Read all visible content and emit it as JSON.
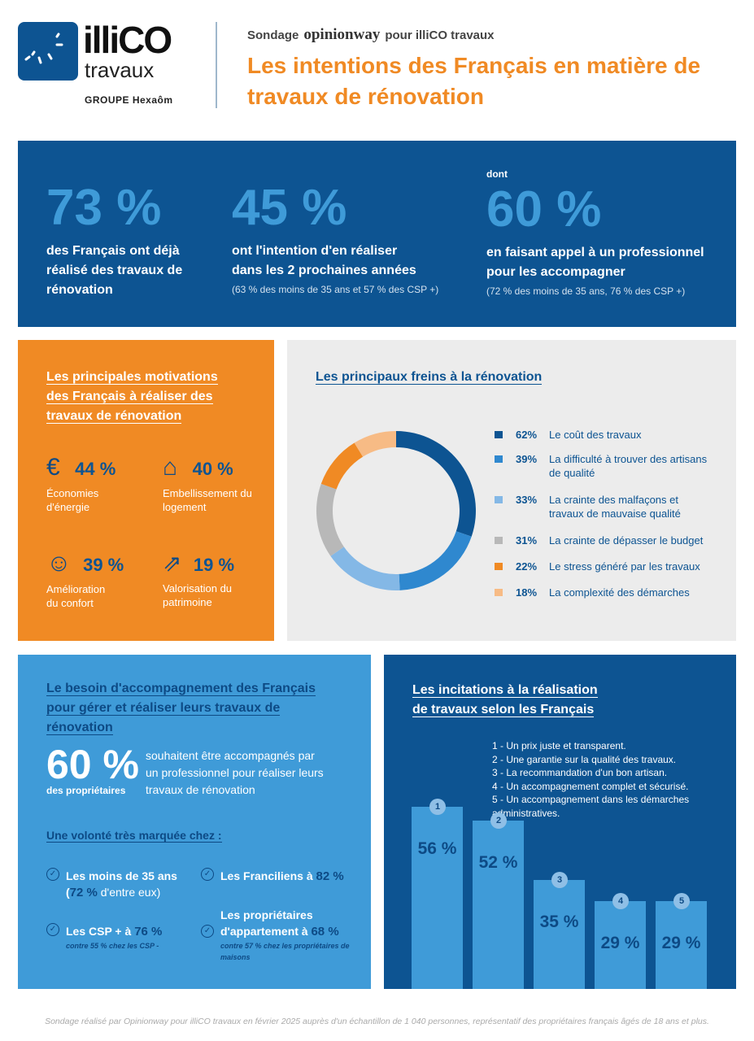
{
  "header": {
    "brand_name": "illiCO",
    "brand_sub": "travaux",
    "group": "GROUPE Hexaôm",
    "survey_prefix": "Sondage",
    "survey_partner": "opinionway",
    "survey_suffix": "pour illiCO travaux",
    "title": "Les intentions des Français en matière de travaux de rénovation"
  },
  "key_figures": [
    {
      "value": "73 %",
      "text": "des Français ont déjà réalisé des travaux de rénovation"
    },
    {
      "value": "45 %",
      "text": "ont l'intention d'en réaliser dans les 2 prochaines années",
      "note": "(63 % des moins de 35 ans et 57 % des CSP +)"
    },
    {
      "pre": "dont",
      "value": "60 %",
      "text": "en faisant appel à un professionnel pour les accompagner",
      "note": "(72 % des moins de 35 ans, 76 % des CSP +)"
    }
  ],
  "motivations": {
    "title": "Les principales motivations des Français à réaliser des travaux de rénovation",
    "items": [
      {
        "icon": "euro-hand-icon",
        "value": "44 %",
        "label": "Économies d'énergie"
      },
      {
        "icon": "house-icon",
        "value": "40 %",
        "label": "Embellissement du logement"
      },
      {
        "icon": "smiley-icon",
        "value": "39 %",
        "label": "Amélioration du confort"
      },
      {
        "icon": "arrow-up-right-icon",
        "value": "19 %",
        "label": "Valorisation du patrimoine"
      }
    ]
  },
  "freins": {
    "title": "Les principaux freins à la rénovation"
  },
  "accompagnement": {
    "title": "Le besoin d'accompagnement des Français pour gérer et réaliser leurs travaux de rénovation",
    "big": "60 %",
    "big_sub": "des propriétaires",
    "text": "souhaitent être accompagnés par un professionnel pour réaliser leurs travaux de rénovation",
    "subtitle": "Une volonté très marquée chez :",
    "items": [
      {
        "label": "Les moins de 35 ans",
        "value": "72 %",
        "extra": "d'entre eux)"
      },
      {
        "label": "Les Franciliens à",
        "value": "82 %"
      },
      {
        "label": "Les CSP +  à",
        "value": "76 %",
        "note": "contre 55 % chez les CSP -"
      },
      {
        "label": "Les propriétaires d'appartement à",
        "value": "68 %",
        "note": "contre 57 % chez les propriétaires de maisons"
      }
    ]
  },
  "incitations": {
    "title": "Les incitations à la réalisation de travaux selon les Français"
  },
  "chart_data": [
    {
      "type": "pie",
      "title": "Les principaux freins à la rénovation",
      "series": [
        {
          "name": "Le coût des travaux",
          "value": 62,
          "color": "#0d5492"
        },
        {
          "name": "La difficulté à trouver des artisans de qualité",
          "value": 39,
          "color": "#2f88cf"
        },
        {
          "name": "La crainte des malfaçons et travaux de mauvaise qualité",
          "value": 33,
          "color": "#84b8e6"
        },
        {
          "name": "La crainte de dépasser le budget",
          "value": 31,
          "color": "#b8b8b8"
        },
        {
          "name": "Le stress généré par les travaux",
          "value": 22,
          "color": "#f08a24"
        },
        {
          "name": "La complexité des démarches",
          "value": 18,
          "color": "#f7bb85"
        }
      ]
    },
    {
      "type": "bar",
      "title": "Les incitations à la réalisation de travaux selon les Français",
      "categories": [
        "1",
        "2",
        "3",
        "4",
        "5"
      ],
      "legend": [
        "1 - Un prix juste et transparent.",
        "2 - Une garantie sur la qualité des travaux.",
        "3 - La recommandation d'un bon artisan.",
        "4 - Un accompagnement complet et sécurisé.",
        "5 - Un accompagnement dans les démarches administratives."
      ],
      "values": [
        56,
        52,
        35,
        29,
        29
      ],
      "labels": [
        "56 %",
        "52 %",
        "35 %",
        "29 %",
        "29 %"
      ]
    }
  ],
  "footer": "Sondage réalisé par Opinionway pour illiCO travaux en février 2025 auprès d'un échantillon de 1 040 personnes, représentatif des propriétaires français âgés de 18 ans et plus."
}
